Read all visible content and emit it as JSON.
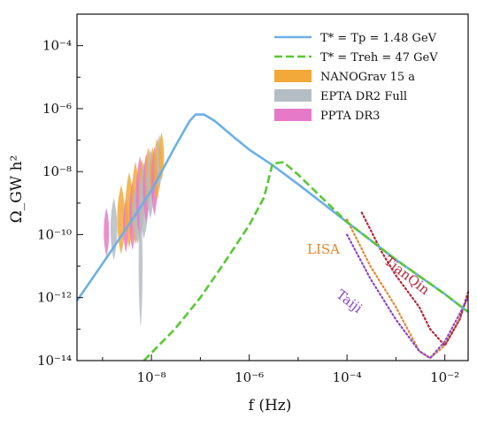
{
  "chart_data": {
    "type": "line",
    "title": "",
    "xlabel": "f (Hz)",
    "ylabel": "Ω_GW h²",
    "x_scale": "log",
    "y_scale": "log",
    "xlim": [
      3e-10,
      0.03
    ],
    "ylim": [
      1e-14,
      0.001
    ],
    "x_ticks": [
      {
        "value": 1e-08,
        "label": "10⁻⁸"
      },
      {
        "value": 1e-06,
        "label": "10⁻⁶"
      },
      {
        "value": 0.0001,
        "label": "10⁻⁴"
      },
      {
        "value": 0.01,
        "label": "10⁻²"
      }
    ],
    "y_ticks": [
      {
        "value": 1e-14,
        "label": "10⁻¹⁴"
      },
      {
        "value": 1e-12,
        "label": "10⁻¹²"
      },
      {
        "value": 1e-10,
        "label": "10⁻¹⁰"
      },
      {
        "value": 1e-08,
        "label": "10⁻⁸"
      },
      {
        "value": 1e-06,
        "label": "10⁻⁶"
      },
      {
        "value": 0.0001,
        "label": "10⁻⁴"
      }
    ],
    "legend_position": "top-right",
    "series": [
      {
        "name": "T* = Tp = 1.48 GeV",
        "style": "solid",
        "color": "#6cb0e6",
        "points": [
          [
            3e-10,
            8e-13
          ],
          [
            1e-09,
            1.2e-11
          ],
          [
            3e-09,
            1.5e-10
          ],
          [
            1e-08,
            2.5e-09
          ],
          [
            3e-08,
            6e-08
          ],
          [
            6e-08,
            4e-07
          ],
          [
            8e-08,
            6.5e-07
          ],
          [
            1.2e-07,
            6.5e-07
          ],
          [
            2e-07,
            4e-07
          ],
          [
            5e-07,
            1.2e-07
          ],
          [
            1e-06,
            5e-08
          ],
          [
            3e-06,
            1.6e-08
          ],
          [
            1e-05,
            4e-09
          ],
          [
            0.0001,
            2.5e-10
          ],
          [
            0.001,
            1.6e-11
          ],
          [
            0.01,
            1.3e-12
          ],
          [
            0.03,
            3.5e-13
          ]
        ]
      },
      {
        "name": "T* = Treh = 47 GeV",
        "style": "dashed",
        "color": "#59c832",
        "points": [
          [
            7e-09,
            1e-14
          ],
          [
            3e-08,
            1e-13
          ],
          [
            1e-07,
            1e-12
          ],
          [
            3e-07,
            1.2e-11
          ],
          [
            1e-06,
            2e-10
          ],
          [
            2e-06,
            1.5e-09
          ],
          [
            3e-06,
            1.8e-08
          ],
          [
            5e-06,
            2e-08
          ],
          [
            1e-05,
            8e-09
          ],
          [
            0.0001,
            2.5e-10
          ],
          [
            0.001,
            1.6e-11
          ],
          [
            0.01,
            1.3e-12
          ],
          [
            0.03,
            3.5e-13
          ]
        ]
      }
    ],
    "sensitivity_curves": [
      {
        "name": "LISA",
        "color": "#e8862f",
        "points": [
          [
            0.0001,
            3e-10
          ],
          [
            0.0003,
            1e-11
          ],
          [
            0.001,
            5e-13
          ],
          [
            0.003,
            2e-14
          ],
          [
            0.005,
            1.2e-14
          ],
          [
            0.01,
            3e-14
          ],
          [
            0.02,
            2e-13
          ],
          [
            0.03,
            1.2e-12
          ]
        ]
      },
      {
        "name": "TianQin",
        "color": "#b8263a",
        "points": [
          [
            0.0002,
            5e-10
          ],
          [
            0.0005,
            3e-11
          ],
          [
            0.001,
            5e-12
          ],
          [
            0.003,
            5e-13
          ],
          [
            0.005,
            1e-13
          ],
          [
            0.01,
            3e-14
          ],
          [
            0.02,
            2e-13
          ],
          [
            0.03,
            1.5e-12
          ]
        ]
      },
      {
        "name": "Taiji",
        "color": "#8b46c8",
        "points": [
          [
            0.0001,
            1e-10
          ],
          [
            0.0003,
            4e-12
          ],
          [
            0.001,
            2e-13
          ],
          [
            0.003,
            2e-14
          ],
          [
            0.005,
            1.2e-14
          ],
          [
            0.01,
            4e-14
          ],
          [
            0.02,
            3e-13
          ],
          [
            0.03,
            1e-12
          ]
        ]
      }
    ],
    "pta_datasets": [
      {
        "name": "NANOGrav 15 a",
        "color": "#f3a93a"
      },
      {
        "name": "EPTA DR2 Full",
        "color": "#b4bcc4"
      },
      {
        "name": "PPTA DR3",
        "color": "#e67ac8"
      }
    ]
  }
}
